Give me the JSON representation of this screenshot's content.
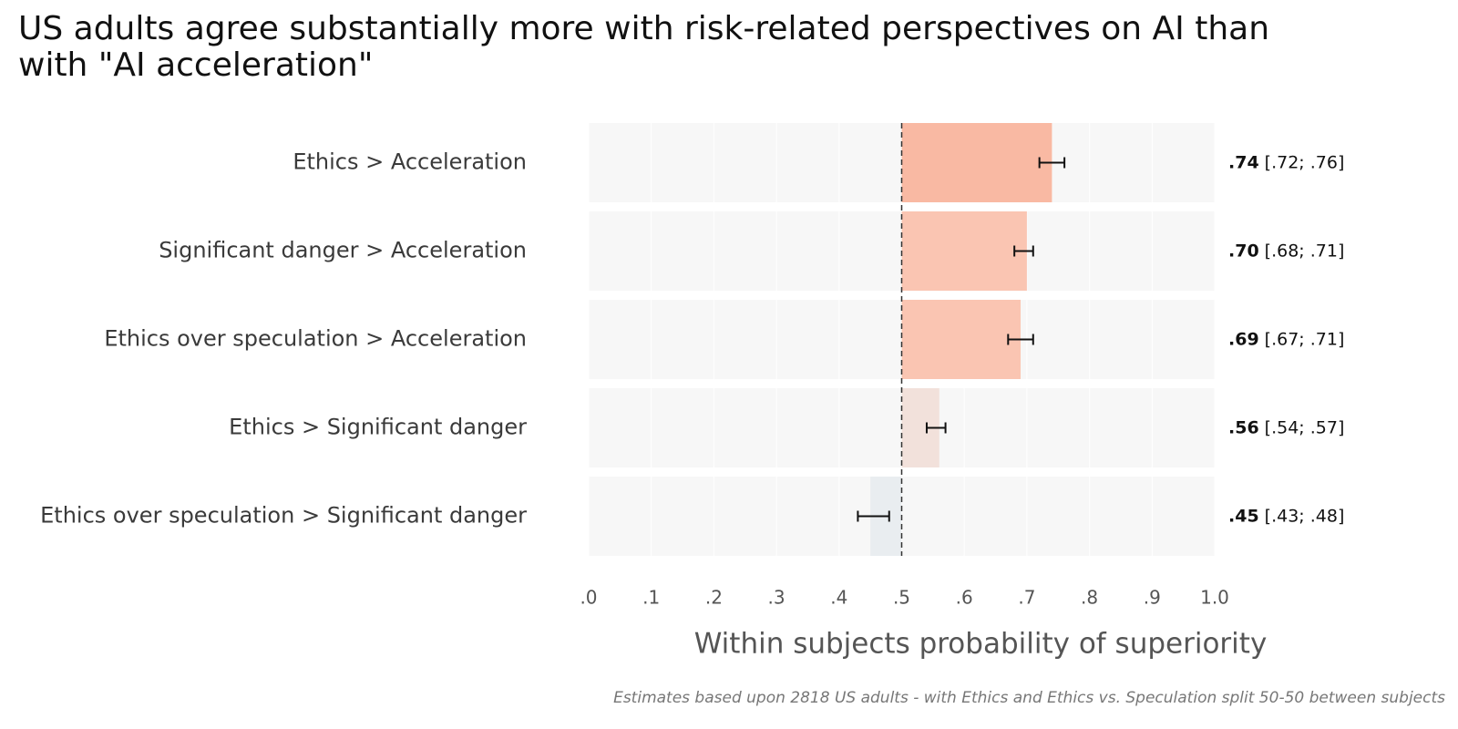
{
  "title_lines": [
    "US adults agree substantially more with risk-related perspectives on AI than",
    "with \"AI acceleration\""
  ],
  "caption": "Estimates based upon 2818 US adults - with Ethics and Ethics vs. Speculation split 50-50 between subjects",
  "colors": {
    "above_strong": "#f9b9a3",
    "above_medium": "#fac5b2",
    "above_weak": "#f2e1db",
    "below": "#e9edf0",
    "band": "#f7f7f7",
    "reference_line": "#333333"
  },
  "chart_data": {
    "type": "bar",
    "orientation": "horizontal",
    "categories": [
      "Ethics > Acceleration",
      "Significant danger > Acceleration",
      "Ethics over speculation > Acceleration",
      "Ethics > Significant danger",
      "Ethics over speculation > Significant danger"
    ],
    "values": [
      0.74,
      0.7,
      0.69,
      0.56,
      0.45
    ],
    "ci_low": [
      0.72,
      0.68,
      0.67,
      0.54,
      0.43
    ],
    "ci_high": [
      0.76,
      0.71,
      0.71,
      0.57,
      0.48
    ],
    "value_labels": [
      ".74",
      ".70",
      ".69",
      ".56",
      ".45"
    ],
    "ci_labels": [
      "[.72; .76]",
      "[.68; .71]",
      "[.67; .71]",
      "[.54; .57]",
      "[.43; .48]"
    ],
    "baseline": 0.5,
    "xlim": [
      0,
      1
    ],
    "xticks": [
      0,
      0.1,
      0.2,
      0.3,
      0.4,
      0.5,
      0.6,
      0.7,
      0.8,
      0.9,
      1.0
    ],
    "xtick_labels": [
      ".0",
      ".1",
      ".2",
      ".3",
      ".4",
      ".5",
      ".6",
      ".7",
      ".8",
      ".9",
      "1.0"
    ],
    "xlabel": "Within subjects probability of superiority",
    "ylabel": "",
    "grid": false,
    "legend": "none"
  }
}
